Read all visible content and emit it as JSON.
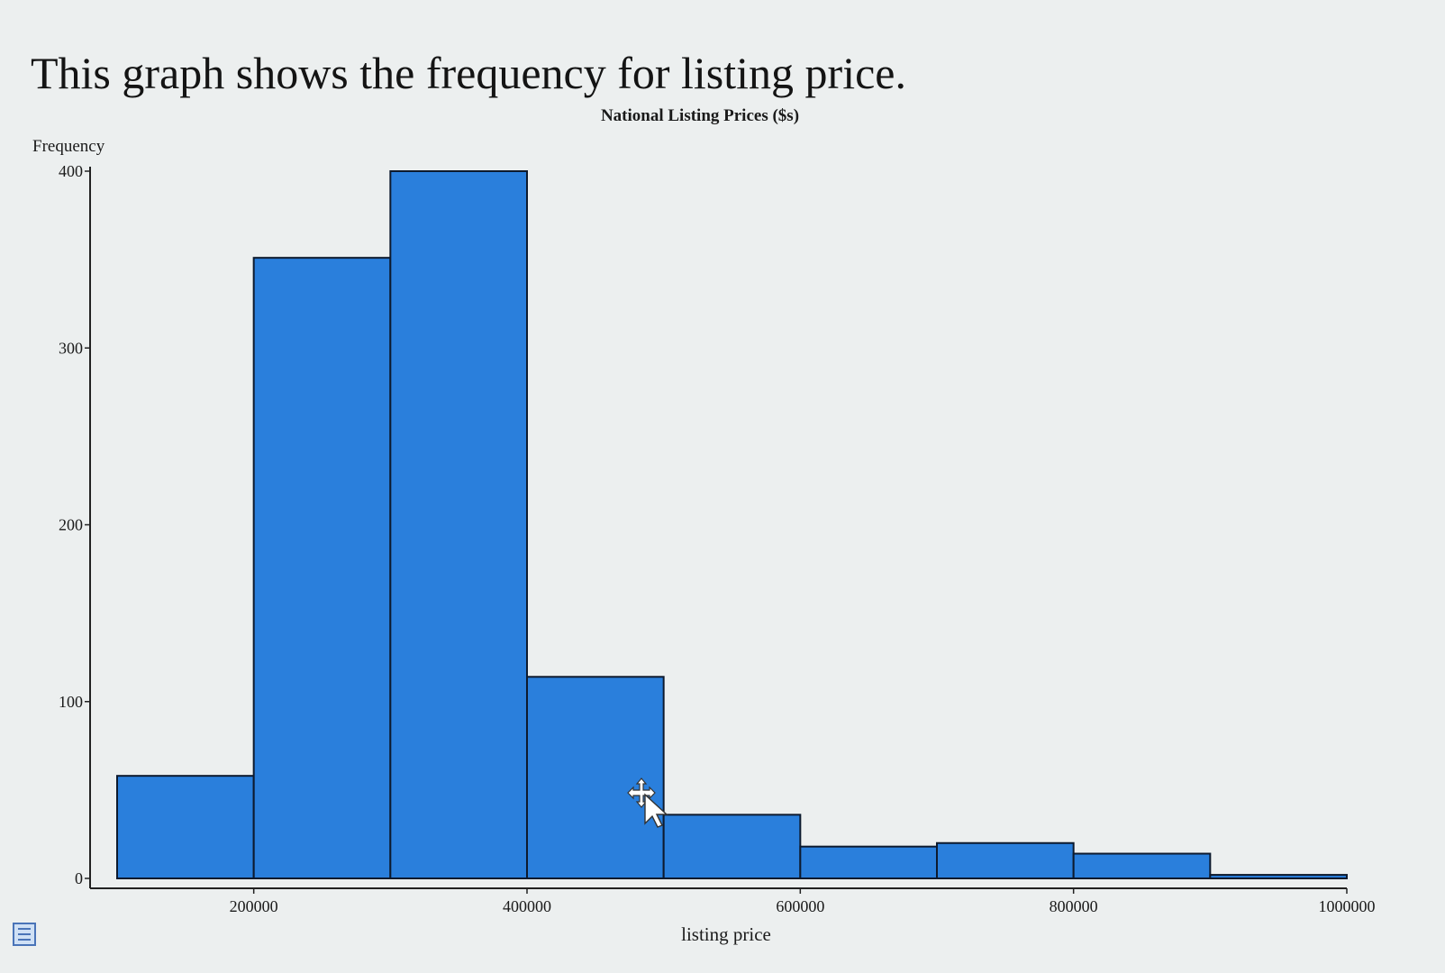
{
  "caption": "This graph shows the frequency for listing price.",
  "chart_data": {
    "type": "bar",
    "title": "National Listing Prices ($s)",
    "xlabel": "listing price",
    "ylabel": "Frequency",
    "xlim": [
      100000,
      1000000
    ],
    "ylim": [
      0,
      400
    ],
    "xticks": [
      200000,
      400000,
      600000,
      800000,
      1000000
    ],
    "xtick_labels": [
      "200000",
      "400000",
      "600000",
      "800000",
      "1000000"
    ],
    "yticks": [
      0,
      100,
      200,
      300,
      400
    ],
    "ytick_labels": [
      "0",
      "100",
      "200",
      "300",
      "400"
    ],
    "bins": [
      {
        "start": 100000,
        "end": 200000,
        "value": 58
      },
      {
        "start": 200000,
        "end": 300000,
        "value": 351
      },
      {
        "start": 300000,
        "end": 400000,
        "value": 400
      },
      {
        "start": 400000,
        "end": 500000,
        "value": 114
      },
      {
        "start": 500000,
        "end": 600000,
        "value": 36
      },
      {
        "start": 600000,
        "end": 700000,
        "value": 18
      },
      {
        "start": 700000,
        "end": 800000,
        "value": 20
      },
      {
        "start": 800000,
        "end": 900000,
        "value": 14
      },
      {
        "start": 900000,
        "end": 1000000,
        "value": 2
      }
    ],
    "bar_color": "#2a7fdc",
    "grid": false,
    "legend": "none"
  },
  "icons": {
    "cursor": "move-cursor-icon",
    "menu": "menu-icon"
  }
}
